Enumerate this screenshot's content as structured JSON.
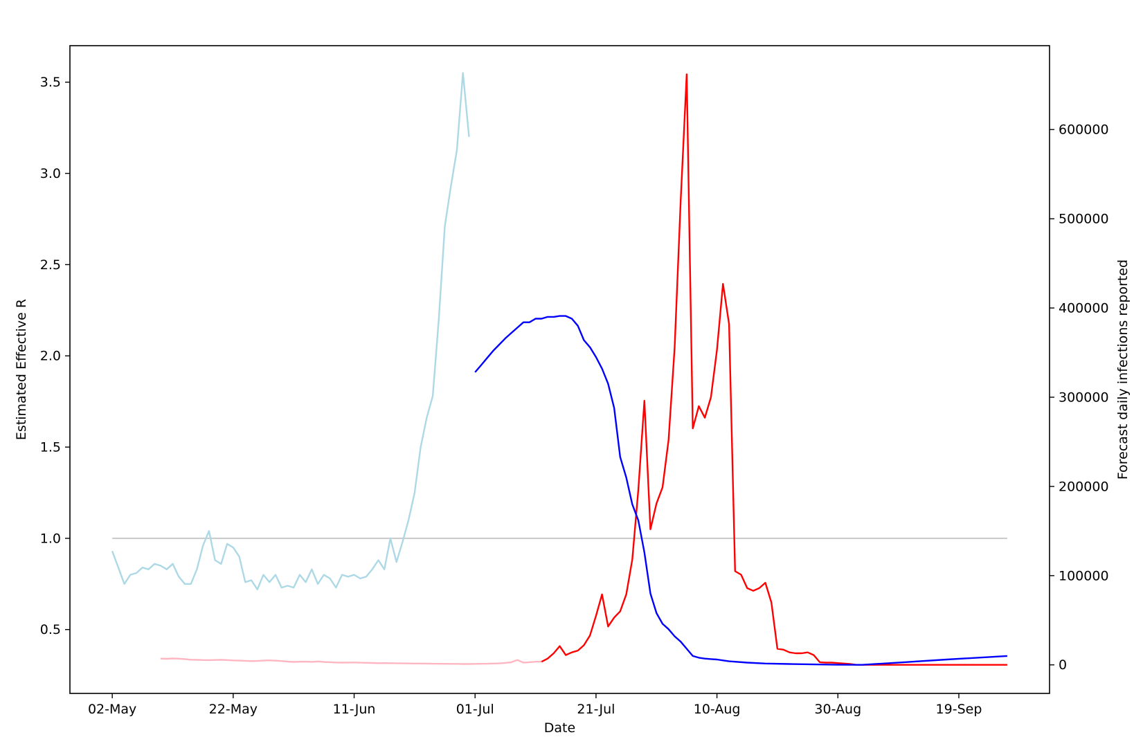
{
  "chart_data": {
    "type": "line",
    "title": "",
    "xlabel": "Date",
    "ylabel_left": "Estimated Effective R",
    "ylabel_right": "Forecast daily infections reported",
    "x_start": "2021-05-02",
    "x_tick_labels": [
      "02-May",
      "22-May",
      "11-Jun",
      "01-Jul",
      "21-Jul",
      "10-Aug",
      "30-Aug",
      "19-Sep"
    ],
    "x_tick_dates": [
      "2021-05-02",
      "2021-05-22",
      "2021-06-11",
      "2021-07-01",
      "2021-07-21",
      "2021-08-10",
      "2021-08-30",
      "2021-09-19"
    ],
    "xlim": [
      "2021-04-25",
      "2021-10-04"
    ],
    "ylim_left": [
      0.15,
      3.7
    ],
    "ylim_right": [
      -32000,
      694000
    ],
    "left_ticks": [
      0.5,
      1.0,
      1.5,
      2.0,
      2.5,
      3.0,
      3.5
    ],
    "left_tick_labels": [
      "0.5",
      "1.0",
      "1.5",
      "2.0",
      "2.5",
      "3.0",
      "3.5"
    ],
    "right_ticks": [
      0,
      100000,
      200000,
      300000,
      400000,
      500000,
      600000
    ],
    "right_tick_labels": [
      "0",
      "100000",
      "200000",
      "300000",
      "400000",
      "500000",
      "600000"
    ],
    "grid": false,
    "series": [
      {
        "axis": "left",
        "color": "#add8e6",
        "x": [
          "2021-05-02",
          "2021-05-03",
          "2021-05-04",
          "2021-05-05",
          "2021-05-06",
          "2021-05-07",
          "2021-05-08",
          "2021-05-09",
          "2021-05-10",
          "2021-05-11",
          "2021-05-12",
          "2021-05-13",
          "2021-05-14",
          "2021-05-15",
          "2021-05-16",
          "2021-05-17",
          "2021-05-18",
          "2021-05-19",
          "2021-05-20",
          "2021-05-21",
          "2021-05-22",
          "2021-05-23",
          "2021-05-24",
          "2021-05-25",
          "2021-05-26",
          "2021-05-27",
          "2021-05-28",
          "2021-05-29",
          "2021-05-30",
          "2021-05-31",
          "2021-06-01",
          "2021-06-02",
          "2021-06-03",
          "2021-06-04",
          "2021-06-05",
          "2021-06-06",
          "2021-06-07",
          "2021-06-08",
          "2021-06-09",
          "2021-06-10",
          "2021-06-11",
          "2021-06-12",
          "2021-06-13",
          "2021-06-14",
          "2021-06-15",
          "2021-06-16",
          "2021-06-17",
          "2021-06-18",
          "2021-06-19",
          "2021-06-20",
          "2021-06-21",
          "2021-06-22",
          "2021-06-23",
          "2021-06-24",
          "2021-06-25",
          "2021-06-26",
          "2021-06-27",
          "2021-06-28",
          "2021-06-29",
          "2021-06-30"
        ],
        "y": [
          0.93,
          0.84,
          0.75,
          0.8,
          0.81,
          0.84,
          0.83,
          0.86,
          0.85,
          0.83,
          0.86,
          0.79,
          0.75,
          0.75,
          0.83,
          0.96,
          1.04,
          0.88,
          0.86,
          0.97,
          0.95,
          0.9,
          0.76,
          0.77,
          0.72,
          0.8,
          0.76,
          0.8,
          0.73,
          0.74,
          0.73,
          0.8,
          0.76,
          0.83,
          0.75,
          0.8,
          0.78,
          0.73,
          0.8,
          0.79,
          0.8,
          0.78,
          0.79,
          0.83,
          0.88,
          0.83,
          1.0,
          0.87,
          0.98,
          1.1,
          1.25,
          1.5,
          1.66,
          1.78,
          2.2,
          2.71,
          2.93,
          3.13,
          3.55,
          3.2
        ]
      },
      {
        "axis": "right",
        "color": "#ffb6c1",
        "x": [
          "2021-05-10",
          "2021-05-11",
          "2021-05-12",
          "2021-05-13",
          "2021-05-14",
          "2021-05-15",
          "2021-05-16",
          "2021-05-17",
          "2021-05-18",
          "2021-05-19",
          "2021-05-20",
          "2021-05-21",
          "2021-05-22",
          "2021-05-23",
          "2021-05-24",
          "2021-05-25",
          "2021-05-26",
          "2021-05-27",
          "2021-05-28",
          "2021-05-29",
          "2021-05-30",
          "2021-05-31",
          "2021-06-01",
          "2021-06-02",
          "2021-06-03",
          "2021-06-04",
          "2021-06-05",
          "2021-06-06",
          "2021-06-07",
          "2021-06-08",
          "2021-06-09",
          "2021-06-10",
          "2021-06-11",
          "2021-06-12",
          "2021-06-13",
          "2021-06-14",
          "2021-06-15",
          "2021-06-16",
          "2021-06-17",
          "2021-06-18",
          "2021-06-19",
          "2021-06-20",
          "2021-06-21",
          "2021-06-22",
          "2021-06-23",
          "2021-06-24",
          "2021-06-25",
          "2021-06-26",
          "2021-06-27",
          "2021-06-28",
          "2021-06-29",
          "2021-06-30",
          "2021-07-01",
          "2021-07-02",
          "2021-07-03",
          "2021-07-04",
          "2021-07-05",
          "2021-07-06",
          "2021-07-07",
          "2021-07-08",
          "2021-07-09",
          "2021-07-10",
          "2021-07-11",
          "2021-07-12"
        ],
        "y": [
          7000,
          6800,
          7200,
          6900,
          6500,
          5800,
          5600,
          5400,
          5300,
          5500,
          5700,
          5400,
          5000,
          4800,
          4500,
          4200,
          4400,
          4800,
          5100,
          4700,
          4300,
          3700,
          3300,
          3500,
          3600,
          3400,
          3800,
          3200,
          3000,
          2700,
          2500,
          2600,
          2700,
          2400,
          2300,
          2100,
          1900,
          2000,
          1900,
          1800,
          1700,
          1600,
          1500,
          1500,
          1400,
          1300,
          1200,
          1200,
          1100,
          1100,
          1000,
          1000,
          1100,
          1200,
          1300,
          1500,
          1700,
          2200,
          3000,
          5500,
          2500,
          3000,
          3500,
          3500
        ]
      },
      {
        "axis": "right",
        "color": "#ff0000",
        "x": [
          "2021-07-12",
          "2021-07-13",
          "2021-07-14",
          "2021-07-15",
          "2021-07-16",
          "2021-07-17",
          "2021-07-18",
          "2021-07-19",
          "2021-07-20",
          "2021-07-21",
          "2021-07-22",
          "2021-07-23",
          "2021-07-24",
          "2021-07-25",
          "2021-07-26",
          "2021-07-27",
          "2021-07-28",
          "2021-07-29",
          "2021-07-30",
          "2021-07-31",
          "2021-08-01",
          "2021-08-02",
          "2021-08-03",
          "2021-08-04",
          "2021-08-05",
          "2021-08-06",
          "2021-08-07",
          "2021-08-08",
          "2021-08-09",
          "2021-08-10",
          "2021-08-11",
          "2021-08-12",
          "2021-08-13",
          "2021-08-14",
          "2021-08-15",
          "2021-08-16",
          "2021-08-17",
          "2021-08-18",
          "2021-08-19",
          "2021-08-20",
          "2021-08-21",
          "2021-08-22",
          "2021-08-23",
          "2021-08-24",
          "2021-08-25",
          "2021-08-26",
          "2021-08-27",
          "2021-08-28",
          "2021-08-29",
          "2021-08-30",
          "2021-08-31",
          "2021-09-01",
          "2021-09-02",
          "2021-09-03",
          "2021-09-04",
          "2021-09-05",
          "2021-09-06",
          "2021-09-07",
          "2021-09-08",
          "2021-09-09",
          "2021-09-10",
          "2021-09-11",
          "2021-09-12",
          "2021-09-13",
          "2021-09-14",
          "2021-09-15",
          "2021-09-16",
          "2021-09-17",
          "2021-09-18",
          "2021-09-19",
          "2021-09-20",
          "2021-09-21",
          "2021-09-22",
          "2021-09-23",
          "2021-09-24",
          "2021-09-25",
          "2021-09-26",
          "2021-09-27"
        ],
        "y": [
          3500,
          7000,
          13000,
          21000,
          11000,
          14000,
          16000,
          22000,
          33000,
          55000,
          79000,
          43000,
          53000,
          60000,
          79000,
          118000,
          196000,
          296000,
          152000,
          181000,
          199000,
          252000,
          356000,
          520000,
          662000,
          265000,
          290000,
          277000,
          300000,
          353000,
          427000,
          382000,
          105000,
          101000,
          86000,
          83000,
          86000,
          92000,
          70000,
          18000,
          17000,
          14000,
          13000,
          13000,
          14000,
          11000,
          3000,
          2500,
          2500,
          2000,
          1500,
          1000,
          0,
          0,
          0,
          0,
          0,
          0,
          0,
          0,
          0,
          0,
          0,
          0,
          0,
          0,
          0,
          0,
          0,
          0,
          0,
          0,
          0,
          0,
          0,
          0,
          0,
          0
        ]
      },
      {
        "axis": "right",
        "color": "#0000ff",
        "x": [
          "2021-07-01",
          "2021-07-02",
          "2021-07-03",
          "2021-07-04",
          "2021-07-05",
          "2021-07-06",
          "2021-07-07",
          "2021-07-08",
          "2021-07-09",
          "2021-07-10",
          "2021-07-11",
          "2021-07-12",
          "2021-07-13",
          "2021-07-14",
          "2021-07-15",
          "2021-07-16",
          "2021-07-17",
          "2021-07-18",
          "2021-07-19",
          "2021-07-20",
          "2021-07-21",
          "2021-07-22",
          "2021-07-23",
          "2021-07-24",
          "2021-07-25",
          "2021-07-26",
          "2021-07-27",
          "2021-07-28",
          "2021-07-29",
          "2021-07-30",
          "2021-07-31",
          "2021-08-01",
          "2021-08-02",
          "2021-08-03",
          "2021-08-04",
          "2021-08-05",
          "2021-08-06",
          "2021-08-07",
          "2021-08-08",
          "2021-08-09",
          "2021-08-10",
          "2021-08-11",
          "2021-08-12",
          "2021-08-15",
          "2021-08-18",
          "2021-08-22",
          "2021-08-26",
          "2021-08-30",
          "2021-09-03",
          "2021-09-10",
          "2021-09-17",
          "2021-09-27"
        ],
        "y": [
          328000,
          336000,
          344000,
          352000,
          359000,
          366000,
          372000,
          378000,
          384000,
          384000,
          388000,
          388000,
          390000,
          390000,
          391000,
          391000,
          388000,
          380000,
          364000,
          356000,
          345000,
          332000,
          315000,
          288000,
          233000,
          210000,
          180000,
          162000,
          126000,
          80000,
          58000,
          46000,
          40000,
          32000,
          26000,
          18000,
          10000,
          8000,
          7000,
          6500,
          6000,
          5000,
          4000,
          2500,
          1500,
          1000,
          500,
          100,
          0,
          3000,
          6000,
          10000
        ]
      }
    ],
    "reference_line": {
      "axis": "left",
      "y": 1.0,
      "x": [
        "2021-05-02",
        "2021-09-27"
      ],
      "color": "#c8c8c8"
    }
  }
}
